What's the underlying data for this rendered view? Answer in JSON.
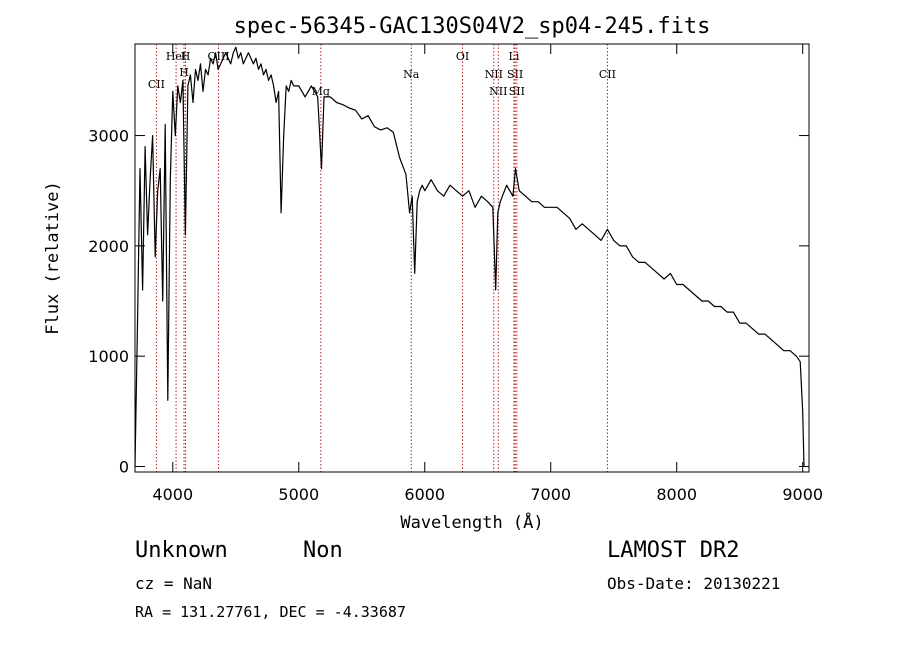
{
  "chart_data": {
    "type": "line",
    "title": "spec-56345-GAC130S04V2_sp04-245.fits",
    "xlabel": "Wavelength (Å)",
    "ylabel": "Flux (relative)",
    "xlim": [
      3700,
      9050
    ],
    "ylim": [
      -50,
      3830
    ],
    "xticks": [
      4000,
      5000,
      6000,
      7000,
      8000,
      9000
    ],
    "yticks": [
      0,
      1000,
      2000,
      3000
    ],
    "series": [
      {
        "x": [
          3700,
          3720,
          3740,
          3760,
          3780,
          3800,
          3820,
          3840,
          3860,
          3880,
          3900,
          3920,
          3940,
          3960,
          3980,
          4000,
          4020,
          4040,
          4060,
          4080,
          4100,
          4120,
          4140,
          4160,
          4180,
          4200,
          4220,
          4240,
          4260,
          4280,
          4300,
          4320,
          4340,
          4360,
          4380,
          4400,
          4420,
          4440,
          4460,
          4480,
          4500,
          4520,
          4540,
          4560,
          4580,
          4600,
          4620,
          4640,
          4660,
          4680,
          4700,
          4720,
          4740,
          4760,
          4780,
          4800,
          4820,
          4840,
          4860,
          4880,
          4900,
          4920,
          4940,
          4960,
          4980,
          5000,
          5050,
          5100,
          5150,
          5180,
          5200,
          5250,
          5300,
          5350,
          5400,
          5450,
          5500,
          5550,
          5600,
          5650,
          5700,
          5750,
          5800,
          5850,
          5880,
          5900,
          5920,
          5940,
          5960,
          5980,
          6000,
          6050,
          6100,
          6150,
          6200,
          6250,
          6300,
          6350,
          6400,
          6450,
          6500,
          6540,
          6563,
          6580,
          6600,
          6650,
          6700,
          6720,
          6750,
          6800,
          6850,
          6900,
          6950,
          7000,
          7050,
          7100,
          7150,
          7200,
          7250,
          7300,
          7350,
          7400,
          7450,
          7500,
          7550,
          7600,
          7650,
          7700,
          7750,
          7800,
          7850,
          7900,
          7950,
          8000,
          8050,
          8100,
          8150,
          8200,
          8250,
          8300,
          8350,
          8400,
          8450,
          8500,
          8550,
          8600,
          8650,
          8700,
          8750,
          8800,
          8850,
          8900,
          8950,
          8980,
          9000,
          9010
        ],
        "y": [
          0,
          1300,
          2700,
          1600,
          2900,
          2100,
          2600,
          3000,
          1900,
          2500,
          2700,
          1500,
          3100,
          600,
          2600,
          3400,
          3000,
          3450,
          3300,
          3500,
          2100,
          3450,
          3550,
          3300,
          3600,
          3500,
          3650,
          3400,
          3600,
          3550,
          3700,
          3650,
          3750,
          3600,
          3650,
          3700,
          3750,
          3700,
          3650,
          3750,
          3800,
          3700,
          3750,
          3650,
          3700,
          3750,
          3700,
          3650,
          3700,
          3600,
          3650,
          3550,
          3600,
          3500,
          3550,
          3450,
          3300,
          3400,
          2300,
          3000,
          3450,
          3400,
          3500,
          3450,
          3450,
          3450,
          3350,
          3450,
          3350,
          2700,
          3350,
          3350,
          3300,
          3280,
          3250,
          3230,
          3150,
          3180,
          3080,
          3050,
          3070,
          3030,
          2800,
          2650,
          2300,
          2450,
          1750,
          2400,
          2500,
          2550,
          2500,
          2600,
          2500,
          2450,
          2550,
          2500,
          2450,
          2500,
          2350,
          2450,
          2400,
          2350,
          1600,
          2300,
          2400,
          2550,
          2450,
          2700,
          2500,
          2450,
          2400,
          2400,
          2350,
          2350,
          2350,
          2300,
          2250,
          2150,
          2200,
          2150,
          2100,
          2050,
          2150,
          2050,
          2000,
          2000,
          1900,
          1850,
          1850,
          1800,
          1750,
          1700,
          1750,
          1650,
          1650,
          1600,
          1550,
          1500,
          1500,
          1450,
          1450,
          1400,
          1400,
          1300,
          1300,
          1250,
          1200,
          1200,
          1150,
          1100,
          1050,
          1050,
          1000,
          950,
          500,
          0
        ]
      }
    ],
    "line_markers": [
      {
        "label": "CII",
        "x": 3870
      },
      {
        "label": "HeI",
        "x": 4026
      },
      {
        "label": "H",
        "x": 4089
      },
      {
        "label": "H",
        "x": 4101
      },
      {
        "label": "OIII",
        "x": 4363
      },
      {
        "label": "Mg",
        "x": 5175
      },
      {
        "label": "Na",
        "x": 5893
      },
      {
        "label": "OI",
        "x": 6300
      },
      {
        "label": "NII",
        "x": 6548
      },
      {
        "label": "NII",
        "x": 6584
      },
      {
        "label": "Li",
        "x": 6708
      },
      {
        "label": "SII",
        "x": 6717
      },
      {
        "label": "SII",
        "x": 6731
      },
      {
        "label": "CII",
        "x": 7450
      }
    ]
  },
  "info": {
    "class": "Unknown",
    "subclass": "Non",
    "survey": "LAMOST DR2",
    "cz": "cz = NaN",
    "obs_date": "Obs-Date: 20130221",
    "coords": "RA = 131.27761, DEC =  -4.33687"
  }
}
